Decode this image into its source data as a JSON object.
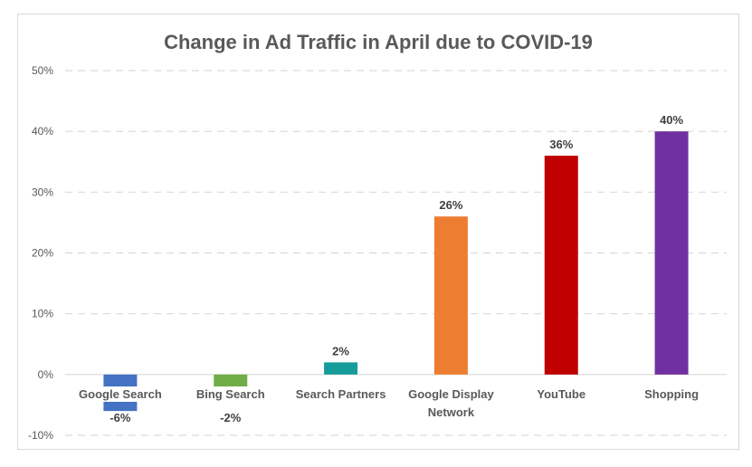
{
  "chart_data": {
    "type": "bar",
    "title": "Change in Ad Traffic in April due to COVID-19",
    "xlabel": "",
    "ylabel": "",
    "categories": [
      [
        "Google Search"
      ],
      [
        "Bing Search"
      ],
      [
        "Search Partners"
      ],
      [
        "Google Display",
        "Network"
      ],
      [
        "YouTube"
      ],
      [
        "Shopping"
      ]
    ],
    "values": [
      -6,
      -2,
      2,
      26,
      36,
      40
    ],
    "data_labels": [
      "-6%",
      "-2%",
      "2%",
      "26%",
      "36%",
      "40%"
    ],
    "colors": [
      "#4472C4",
      "#70AD47",
      "#169C9A",
      "#ED7D31",
      "#C00000",
      "#7030A0"
    ],
    "ylim": [
      -10,
      50
    ],
    "yticks": [
      -10,
      0,
      10,
      20,
      30,
      40,
      50
    ],
    "ytick_labels": [
      "-10%",
      "0%",
      "10%",
      "20%",
      "30%",
      "40%",
      "50%"
    ],
    "grid": true,
    "legend": "none"
  }
}
